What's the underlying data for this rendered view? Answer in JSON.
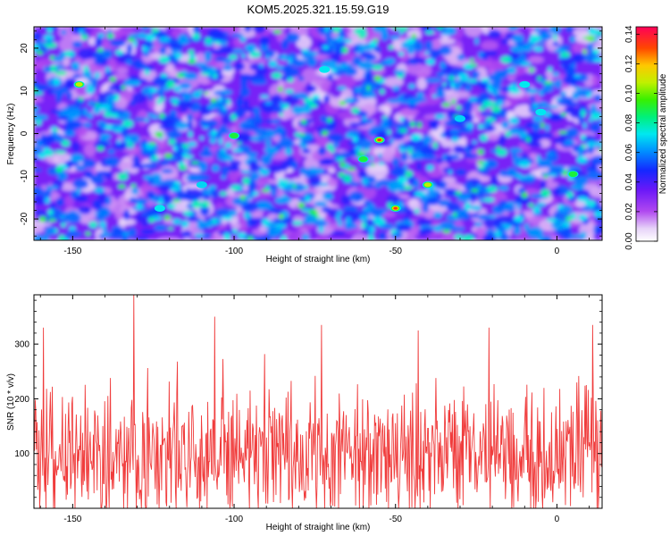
{
  "title": "KOM5.2025.321.15.59.G19",
  "chart_data": [
    {
      "type": "heatmap",
      "title": "KOM5.2025.321.15.59.G19",
      "xlabel": "Height of straight line (km)",
      "ylabel": "Frequency (Hz)",
      "xlim": [
        -162,
        14
      ],
      "ylim": [
        -25,
        25
      ],
      "xticks": [
        -150,
        -100,
        -50,
        0
      ],
      "xtick_labels": [
        "-150",
        "-100",
        "-50",
        "0"
      ],
      "yticks": [
        -20,
        -10,
        0,
        10,
        20
      ],
      "ytick_labels": [
        "-20",
        "-10",
        "0",
        "10",
        "20"
      ],
      "colorbar": {
        "label": "Normalized spectral amplitude",
        "range": [
          0,
          0.145
        ],
        "ticks": [
          0,
          0.02,
          0.04,
          0.06,
          0.08,
          0.1,
          0.12,
          0.14
        ],
        "tick_labels": [
          "0.00",
          "0.02",
          "0.04",
          "0.06",
          "0.08",
          "0.10",
          "0.12",
          "0.14"
        ]
      },
      "peaks": [
        {
          "x": -55,
          "y": -1.5,
          "value": 0.14
        },
        {
          "x": -50,
          "y": -17.5,
          "value": 0.135
        },
        {
          "x": -148,
          "y": 11.5,
          "value": 0.12
        },
        {
          "x": -40,
          "y": -12,
          "value": 0.11
        },
        {
          "x": -60,
          "y": -6,
          "value": 0.1
        },
        {
          "x": -100,
          "y": -0.5,
          "value": 0.09
        },
        {
          "x": 5,
          "y": -9.5,
          "value": 0.09
        },
        {
          "x": -5,
          "y": 5,
          "value": 0.08
        },
        {
          "x": -123,
          "y": -17.5,
          "value": 0.08
        },
        {
          "x": -72,
          "y": 15,
          "value": 0.075
        },
        {
          "x": -10,
          "y": 11.5,
          "value": 0.075
        },
        {
          "x": -30,
          "y": 3.5,
          "value": 0.07
        },
        {
          "x": -110,
          "y": -12,
          "value": 0.07
        },
        {
          "x": -145,
          "y": -8,
          "value": 0.065
        },
        {
          "x": -85,
          "y": 20,
          "value": 0.065
        },
        {
          "x": 10,
          "y": 8,
          "value": 0.06
        },
        {
          "x": -20,
          "y": -5,
          "value": 0.06
        },
        {
          "x": -130,
          "y": 5,
          "value": 0.055
        },
        {
          "x": -90,
          "y": -20,
          "value": 0.055
        },
        {
          "x": -45,
          "y": 18,
          "value": 0.05
        }
      ]
    },
    {
      "type": "line",
      "xlabel": "Height of straight line (km)",
      "ylabel": "SNR (10 * v/v)",
      "xlim": [
        -162,
        14
      ],
      "ylim": [
        0,
        390
      ],
      "xticks": [
        -150,
        -100,
        -50,
        0
      ],
      "xtick_labels": [
        "-150",
        "-100",
        "-50",
        "0"
      ],
      "yticks": [
        100,
        200,
        300
      ],
      "ytick_labels": [
        "100",
        "200",
        "300"
      ],
      "series": [
        {
          "name": "SNR",
          "color": "#f03c3c",
          "description_stats": {
            "mean": 100,
            "min": 0,
            "max": 390,
            "samples": 900
          },
          "notable_peaks": [
            {
              "x": -131,
              "y": 390
            },
            {
              "x": -106,
              "y": 350
            },
            {
              "x": 11,
              "y": 335
            },
            {
              "x": -159,
              "y": 330
            },
            {
              "x": -73,
              "y": 335
            },
            {
              "x": -21,
              "y": 330
            },
            {
              "x": -43,
              "y": 325
            }
          ]
        }
      ]
    }
  ]
}
